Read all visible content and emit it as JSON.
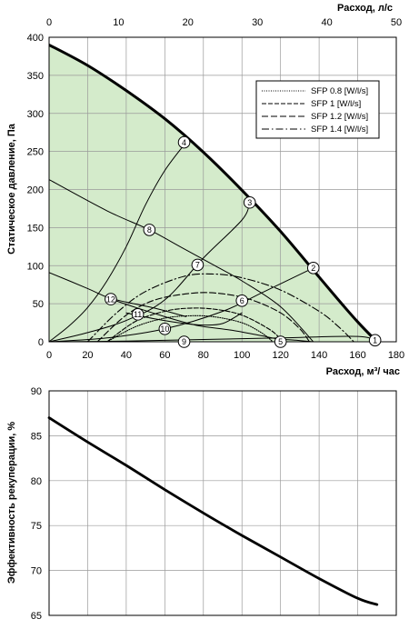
{
  "chart_data": [
    {
      "type": "line",
      "title": "",
      "xlabel": "Расход, м³/ час",
      "x2label": "Расход, л/с",
      "ylabel": "Статическое давление, Па",
      "xlim": [
        0,
        180
      ],
      "x2lim": [
        0,
        50
      ],
      "ylim": [
        0,
        400
      ],
      "x_ticks": [
        "0",
        "20",
        "40",
        "60",
        "80",
        "100",
        "120",
        "140",
        "160",
        "180"
      ],
      "x2_ticks": [
        "0",
        "10",
        "20",
        "30",
        "40",
        "50"
      ],
      "y_ticks": [
        "0",
        "50",
        "100",
        "150",
        "200",
        "250",
        "300",
        "350",
        "400"
      ],
      "grid": true,
      "area_color": "#d4ebcb",
      "series": [
        {
          "role": "max-curve",
          "x": [
            0,
            20,
            40,
            60,
            80,
            100,
            120,
            140,
            150,
            160,
            170
          ],
          "y": [
            390,
            363,
            330,
            293,
            249,
            199,
            145,
            85,
            55,
            26,
            0
          ]
        },
        {
          "role": "system",
          "x": [
            0,
            10,
            20,
            30,
            40,
            50,
            60,
            71
          ],
          "y": [
            0,
            20,
            45,
            80,
            125,
            180,
            225,
            262
          ]
        },
        {
          "role": "system",
          "x": [
            0,
            20,
            40,
            60,
            80,
            100,
            104
          ],
          "y": [
            0,
            12,
            28,
            55,
            110,
            160,
            183
          ]
        },
        {
          "role": "system",
          "x": [
            0,
            30,
            60,
            90,
            110,
            137
          ],
          "y": [
            0,
            5,
            17,
            40,
            64,
            97
          ]
        },
        {
          "role": "system",
          "x": [
            0,
            40,
            80,
            120,
            160,
            170
          ],
          "y": [
            0,
            1,
            3,
            5,
            7,
            0
          ]
        },
        {
          "role": "fan-speed",
          "x": [
            0,
            30,
            52,
            70,
            86,
            100,
            120,
            137
          ],
          "y": [
            213,
            172,
            147,
            122,
            100,
            80,
            46,
            0
          ]
        },
        {
          "role": "fan-speed",
          "x": [
            0,
            20,
            32,
            55,
            71
          ],
          "y": [
            91,
            70,
            57,
            44,
            33
          ]
        },
        {
          "role": "fan-speed",
          "x": [
            31,
            45,
            60,
            71,
            80,
            95,
            110,
            118,
            128,
            137
          ],
          "y": [
            57,
            45,
            33,
            25,
            20,
            15,
            8,
            4,
            2,
            0
          ]
        },
        {
          "role": "fan-speed",
          "x": [
            40,
            55,
            70,
            80,
            90,
            100
          ],
          "y": [
            38,
            30,
            24,
            22,
            24,
            38
          ]
        },
        {
          "name": "SFP 0.8 [W/l/s]",
          "dash": "1,1.5",
          "x": [
            30,
            45,
            60,
            72,
            85,
            100,
            110,
            116
          ],
          "y": [
            0,
            20,
            31,
            34,
            33,
            25,
            12,
            0
          ]
        },
        {
          "name": "SFP 1 [W/l/s]",
          "dash": "5,2",
          "x": [
            30,
            45,
            60,
            72,
            85,
            100,
            115,
            121
          ],
          "y": [
            0,
            27,
            40,
            44,
            43,
            35,
            15,
            0
          ]
        },
        {
          "name": "SFP 1.2 [W/l/s]",
          "dash": "7,3",
          "x": [
            25,
            40,
            55,
            75,
            90,
            105,
            120,
            130,
            135
          ],
          "y": [
            0,
            35,
            55,
            64,
            63,
            55,
            38,
            17,
            0
          ]
        },
        {
          "name": "SFP 1.4 [W/l/s]",
          "dash": "8,3,1.5,3",
          "x": [
            20,
            35,
            50,
            70,
            85,
            100,
            120,
            140,
            150,
            158
          ],
          "y": [
            0,
            38,
            66,
            86,
            89,
            84,
            68,
            40,
            20,
            0
          ]
        }
      ],
      "points": [
        {
          "label": "1",
          "x": 169,
          "y": 2
        },
        {
          "label": "2",
          "x": 137,
          "y": 97
        },
        {
          "label": "3",
          "x": 104,
          "y": 183
        },
        {
          "label": "4",
          "x": 70,
          "y": 262
        },
        {
          "label": "5",
          "x": 120,
          "y": 0
        },
        {
          "label": "6",
          "x": 100,
          "y": 54
        },
        {
          "label": "7",
          "x": 77,
          "y": 101
        },
        {
          "label": "8",
          "x": 52,
          "y": 147
        },
        {
          "label": "9",
          "x": 70,
          "y": 0
        },
        {
          "label": "10",
          "x": 60,
          "y": 17
        },
        {
          "label": "11",
          "x": 46,
          "y": 36
        },
        {
          "label": "12",
          "x": 32,
          "y": 56
        }
      ]
    },
    {
      "type": "line",
      "title": "",
      "xlabel": "",
      "ylabel": "Эффективность рекуперации, %",
      "xlim": [
        0,
        180
      ],
      "ylim": [
        65,
        90
      ],
      "y_ticks": [
        "65",
        "70",
        "75",
        "80",
        "85",
        "90"
      ],
      "grid": true,
      "series": [
        {
          "x": [
            0,
            20,
            40,
            60,
            80,
            100,
            120,
            140,
            160,
            170
          ],
          "y": [
            87,
            84.3,
            81.7,
            79,
            76.4,
            73.9,
            71.5,
            69.1,
            66.9,
            66.2
          ]
        }
      ]
    }
  ]
}
